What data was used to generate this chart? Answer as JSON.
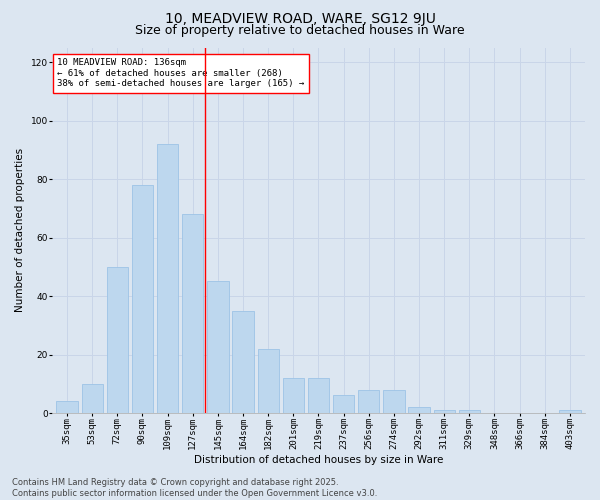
{
  "title1": "10, MEADVIEW ROAD, WARE, SG12 9JU",
  "title2": "Size of property relative to detached houses in Ware",
  "xlabel": "Distribution of detached houses by size in Ware",
  "ylabel": "Number of detached properties",
  "categories": [
    "35sqm",
    "53sqm",
    "72sqm",
    "90sqm",
    "109sqm",
    "127sqm",
    "145sqm",
    "164sqm",
    "182sqm",
    "201sqm",
    "219sqm",
    "237sqm",
    "256sqm",
    "274sqm",
    "292sqm",
    "311sqm",
    "329sqm",
    "348sqm",
    "366sqm",
    "384sqm",
    "403sqm"
  ],
  "values": [
    4,
    10,
    50,
    78,
    92,
    68,
    45,
    35,
    22,
    12,
    12,
    6,
    8,
    8,
    2,
    1,
    1,
    0,
    0,
    0,
    1
  ],
  "bar_color": "#BDD7EE",
  "bar_edge_color": "#9DC3E6",
  "grid_color": "#C9D5E8",
  "background_color": "#DCE6F1",
  "vline_color": "red",
  "vline_x": 5.5,
  "annotation_line1": "10 MEADVIEW ROAD: 136sqm",
  "annotation_line2": "← 61% of detached houses are smaller (268)",
  "annotation_line3": "38% of semi-detached houses are larger (165) →",
  "annotation_box_color": "white",
  "annotation_box_edge": "red",
  "ylim": [
    0,
    125
  ],
  "yticks": [
    0,
    20,
    40,
    60,
    80,
    100,
    120
  ],
  "footer1": "Contains HM Land Registry data © Crown copyright and database right 2025.",
  "footer2": "Contains public sector information licensed under the Open Government Licence v3.0.",
  "title1_fontsize": 10,
  "title2_fontsize": 9,
  "axis_label_fontsize": 7.5,
  "tick_fontsize": 6.5,
  "annotation_fontsize": 6.5,
  "footer_fontsize": 6
}
